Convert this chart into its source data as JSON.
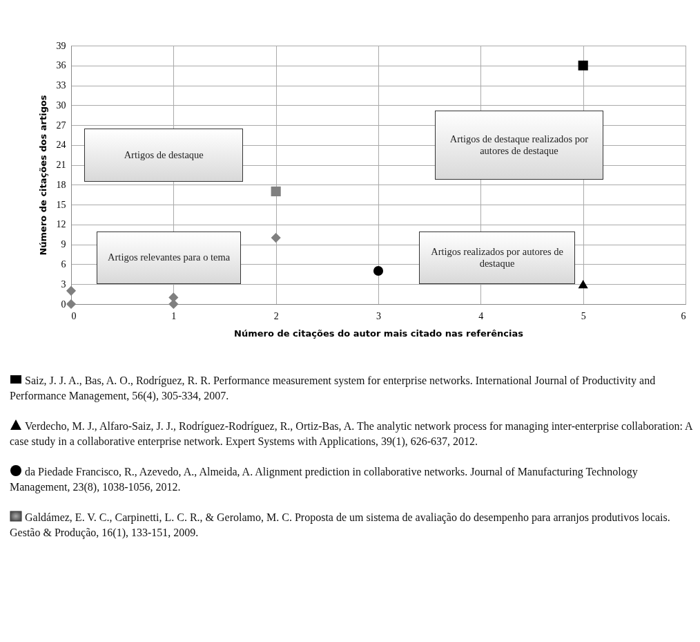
{
  "chart_data": {
    "type": "scatter",
    "xlabel": "Número de citações do autor mais citado nas referências",
    "ylabel": "Número de citações dos artigos",
    "xlim": [
      0,
      6
    ],
    "xticks": [
      0,
      1,
      2,
      3,
      4,
      5,
      6
    ],
    "ylim": [
      0,
      39
    ],
    "yticks": [
      0,
      3,
      6,
      9,
      12,
      15,
      18,
      21,
      24,
      27,
      30,
      33,
      36,
      39
    ],
    "grid": true,
    "series": [
      {
        "color": "#7f7f7f",
        "marker": "diamond",
        "x": [
          0,
          0,
          1,
          1,
          2
        ],
        "values": [
          2,
          0,
          1,
          0,
          10
        ]
      },
      {
        "color": "#808080",
        "marker": "square",
        "x": [
          2
        ],
        "values": [
          17
        ]
      },
      {
        "color": "#000000",
        "marker": "circle",
        "x": [
          3
        ],
        "values": [
          5
        ]
      },
      {
        "color": "#000000",
        "marker": "triangle",
        "x": [
          5
        ],
        "values": [
          3
        ]
      },
      {
        "color": "#000000",
        "marker": "square",
        "x": [
          5
        ],
        "values": [
          36
        ]
      }
    ],
    "annotations": [
      "Artigos de destaque",
      "Artigos relevantes para o tema",
      "Artigos de destaque realizados por autores de destaque",
      "Artigos realizados por autores de destaque",
      "Saiz, J. J. A., Bas, A. O., Rodríguez, R. R. Performance measurement system for enterprise networks. International Journal of Productivity and Performance Management, 56(4), 305-334, 2007.",
      "Verdecho, M. J., Alfaro-Saiz, J. J., Rodríguez-Rodríguez, R., Ortiz-Bas, A. The analytic network process for managing inter-enterprise collaboration: A case study in a collaborative enterprise network. Expert Systems with Applications, 39(1), 626-637, 2012.",
      "da Piedade Francisco, R., Azevedo, A., Almeida, A. Alignment prediction in collaborative networks. Journal of Manufacturing Technology Management, 23(8), 1038-1056, 2012.",
      "Galdámez, E. V. C., Carpinetti, L. C. R., & Gerolamo, M. C. Proposta de um sistema de avaliação do desempenho para arranjos produtivos locais. Gestão & Produção, 16(1), 133-151, 2009."
    ]
  }
}
